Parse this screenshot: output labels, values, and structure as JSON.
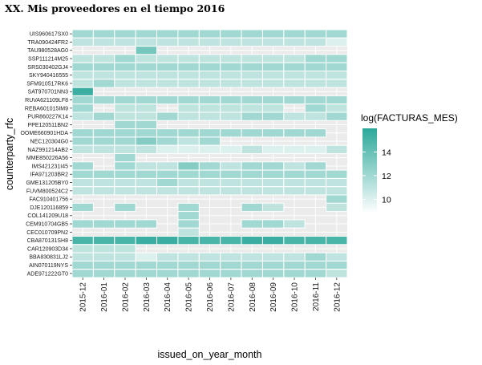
{
  "chart_data": {
    "type": "heatmap",
    "title": "XX. Mis proveedores en el tiempo 2016",
    "xlabel": "issued_on_year_month",
    "ylabel": "counterparty_rfc",
    "x_categories": [
      "2015-12",
      "2016-01",
      "2016-02",
      "2016-03",
      "2016-04",
      "2016-05",
      "2016-06",
      "2016-07",
      "2016-08",
      "2016-09",
      "2016-10",
      "2016-11",
      "2016-12"
    ],
    "y_categories": [
      "UIS960617SX0",
      "TRA090424FR2",
      "TAU980528AG0",
      "SSP111214M25",
      "SRS030402GJ4",
      "SKY940416555",
      "SFM910517RK6",
      "SAT970701NN3",
      "RUVA621109LF8",
      "REBA601015IM9",
      "PUR860227K14",
      "PPE120511BN2",
      "OOME660901HDA",
      "NEC120304G0",
      "NAZ991214AB2",
      "MME850226A56",
      "IMS421231I45",
      "IFA971203BR2",
      "GME131205BY0",
      "FUVM800524C2",
      "FAC910401756",
      "DJE120116859",
      "COL141209U18",
      "CEM910704GB5",
      "CEC010709PN2",
      "CBA870131SH8",
      "CAR120903D34",
      "BBA830831LJ2",
      "AIN070119NYS",
      "ADE971222GT0"
    ],
    "legend": {
      "title": "log(FACTURAS_MES)",
      "breaks": [
        10,
        12,
        14
      ],
      "break_labels": [
        "10",
        "12",
        "14"
      ],
      "range": [
        8.8,
        16
      ],
      "low_color": "#ffffff",
      "high_color": "#2ca89a",
      "position": "right"
    },
    "panel_background": "#ebebeb",
    "values": [
      [
        12,
        12,
        12,
        12,
        12,
        12,
        12,
        12,
        12,
        12,
        12,
        12,
        12
      ],
      [
        11,
        11,
        11,
        11,
        11,
        11,
        11,
        11,
        11,
        11,
        11,
        11,
        10
      ],
      [
        null,
        null,
        null,
        13.5,
        null,
        null,
        null,
        null,
        null,
        null,
        null,
        null,
        null
      ],
      [
        11,
        11,
        12,
        11,
        11,
        11,
        11,
        11,
        11,
        11,
        11,
        12,
        12
      ],
      [
        12,
        12,
        12,
        12,
        12,
        12,
        12,
        12,
        12,
        12,
        12,
        12,
        12
      ],
      [
        11,
        11,
        11,
        11,
        11,
        11,
        11,
        11,
        11,
        11,
        11,
        11,
        11
      ],
      [
        11,
        12,
        11,
        11,
        11,
        11,
        11,
        11,
        11,
        11,
        11,
        11,
        11
      ],
      [
        15.5,
        null,
        null,
        null,
        null,
        null,
        null,
        null,
        null,
        null,
        null,
        null,
        null
      ],
      [
        12,
        12,
        12,
        12,
        12,
        12,
        12,
        12,
        12,
        12,
        12,
        12,
        12
      ],
      [
        12,
        null,
        11,
        11,
        null,
        11,
        11,
        11,
        11,
        11,
        null,
        12,
        11
      ],
      [
        11,
        12,
        11,
        11,
        12,
        11,
        11,
        11,
        12,
        12,
        11,
        11,
        12
      ],
      [
        null,
        null,
        12,
        12,
        null,
        null,
        null,
        null,
        null,
        null,
        null,
        null,
        null
      ],
      [
        12,
        12,
        12,
        12,
        12,
        12,
        12,
        12,
        12,
        12,
        12,
        12,
        null
      ],
      [
        12,
        12,
        12,
        13,
        12,
        11,
        12,
        null,
        null,
        null,
        null,
        null,
        null
      ],
      [
        11,
        11,
        11,
        11,
        10,
        10,
        10,
        10,
        11,
        10,
        10,
        10,
        11
      ],
      [
        null,
        null,
        12,
        null,
        null,
        null,
        null,
        null,
        null,
        null,
        null,
        null,
        null
      ],
      [
        12,
        null,
        12,
        11,
        11,
        13,
        12,
        11,
        12,
        12,
        11,
        12,
        null
      ],
      [
        12,
        12,
        12,
        12,
        12,
        12,
        12,
        12,
        12,
        12,
        12,
        12,
        12
      ],
      [
        11,
        11,
        11,
        11,
        12,
        11,
        11,
        11,
        11,
        11,
        11,
        11,
        11
      ],
      [
        11,
        11,
        11,
        11,
        11,
        11,
        11,
        11,
        11,
        11,
        11,
        11,
        11
      ],
      [
        null,
        null,
        null,
        null,
        null,
        null,
        null,
        null,
        null,
        null,
        null,
        null,
        12
      ],
      [
        12,
        null,
        12,
        null,
        null,
        12,
        null,
        null,
        12,
        11,
        null,
        null,
        11
      ],
      [
        null,
        null,
        null,
        null,
        null,
        12,
        null,
        null,
        null,
        null,
        null,
        null,
        null
      ],
      [
        12,
        12,
        12,
        12,
        null,
        12,
        null,
        null,
        12,
        12,
        11,
        null,
        null
      ],
      [
        null,
        null,
        null,
        null,
        null,
        11,
        null,
        null,
        null,
        null,
        null,
        null,
        null
      ],
      [
        15,
        15,
        15,
        15.5,
        15.5,
        15,
        15,
        15,
        15.5,
        15.5,
        15,
        15,
        15
      ],
      [
        11,
        11,
        11,
        null,
        null,
        null,
        null,
        null,
        null,
        null,
        null,
        null,
        null
      ],
      [
        11,
        11,
        11,
        10,
        11,
        11,
        11,
        11,
        11,
        11,
        11,
        12,
        11
      ],
      [
        12,
        12,
        12,
        12,
        12,
        12,
        12,
        12,
        12,
        12,
        12,
        12,
        12
      ],
      [
        12,
        12,
        12,
        12,
        12,
        12,
        12,
        12,
        12,
        12,
        12,
        12,
        11
      ]
    ]
  }
}
